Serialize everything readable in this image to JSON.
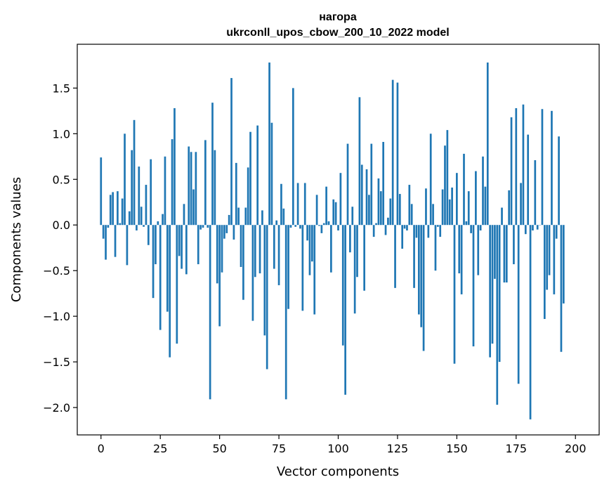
{
  "chart_data": {
    "type": "bar",
    "title_line1": "нагора",
    "title_line2": "ukrconll_upos_cbow_200_10_2022 model",
    "xlabel": "Vector components",
    "ylabel": "Components values",
    "xlim": [
      -10,
      210
    ],
    "ylim": [
      -2.3,
      1.98
    ],
    "x_ticks": [
      0,
      25,
      50,
      75,
      100,
      125,
      150,
      175,
      200
    ],
    "x_tick_labels": [
      "0",
      "25",
      "50",
      "75",
      "100",
      "125",
      "150",
      "175",
      "200"
    ],
    "y_ticks": [
      -2.0,
      -1.5,
      -1.0,
      -0.5,
      0.0,
      0.5,
      1.0,
      1.5
    ],
    "y_tick_labels": [
      "−2.0",
      "−1.5",
      "−1.0",
      "−0.5",
      "0.0",
      "0.5",
      "1.0",
      "1.5"
    ],
    "bar_color": "#1f77b4",
    "values": [
      0.74,
      -0.15,
      -0.38,
      -0.03,
      0.33,
      0.36,
      -0.35,
      0.37,
      0.02,
      0.29,
      1.0,
      -0.44,
      0.15,
      0.82,
      1.15,
      -0.06,
      0.64,
      0.2,
      -0.02,
      0.44,
      -0.22,
      0.72,
      -0.8,
      -0.43,
      0.04,
      -1.15,
      0.12,
      0.75,
      -0.95,
      -1.45,
      0.94,
      1.28,
      -1.3,
      -0.34,
      -0.48,
      0.23,
      -0.54,
      0.86,
      0.8,
      0.39,
      0.8,
      -0.43,
      -0.05,
      -0.03,
      0.93,
      -0.03,
      -1.91,
      1.34,
      0.82,
      -0.64,
      -1.11,
      -0.52,
      -0.15,
      -0.09,
      0.11,
      1.61,
      -0.16,
      0.68,
      0.19,
      -0.46,
      -0.82,
      0.19,
      0.63,
      1.02,
      -1.05,
      -0.57,
      1.09,
      -0.53,
      0.16,
      -1.21,
      -1.58,
      1.78,
      1.12,
      -0.48,
      0.05,
      -0.66,
      0.45,
      0.18,
      -1.91,
      -0.92,
      -0.03,
      1.5,
      -0.02,
      0.46,
      -0.04,
      -0.94,
      0.46,
      -0.17,
      -0.55,
      -0.4,
      -0.98,
      0.33,
      -0.01,
      -0.09,
      0.02,
      0.42,
      0.04,
      -0.52,
      0.28,
      0.25,
      -0.06,
      0.57,
      -1.32,
      -1.86,
      0.89,
      -0.3,
      0.2,
      -0.97,
      -0.57,
      1.4,
      0.66,
      -0.72,
      0.61,
      0.33,
      0.89,
      -0.13,
      0.02,
      0.51,
      0.37,
      0.91,
      -0.11,
      0.08,
      0.29,
      1.59,
      -0.69,
      1.56,
      0.34,
      -0.26,
      -0.04,
      -0.06,
      0.44,
      0.23,
      -0.69,
      -0.14,
      -0.98,
      -1.12,
      -1.38,
      0.4,
      -0.14,
      1.0,
      0.23,
      -0.5,
      -0.02,
      -0.13,
      0.39,
      0.87,
      1.04,
      0.28,
      0.41,
      -1.52,
      0.57,
      -0.53,
      -0.76,
      0.78,
      0.04,
      0.37,
      -0.09,
      -1.33,
      0.59,
      -0.55,
      -0.06,
      0.75,
      0.42,
      1.78,
      -1.45,
      -1.3,
      -0.59,
      -1.97,
      -1.5,
      0.19,
      -0.63,
      -0.63,
      0.38,
      1.18,
      -0.43,
      1.28,
      -1.74,
      0.46,
      1.32,
      -0.1,
      0.99,
      -2.13,
      -0.06,
      0.71,
      -0.05,
      0.0,
      1.27,
      -1.03,
      -0.71,
      -0.55,
      1.25,
      -0.76,
      -0.15,
      0.97,
      -1.39,
      -0.86
    ]
  }
}
